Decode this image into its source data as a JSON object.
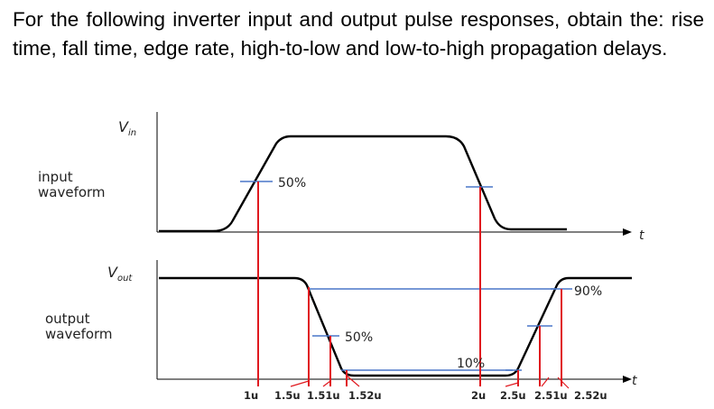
{
  "question": {
    "text": "For the following inverter input and output pulse responses, obtain the: rise time, fall time, edge rate, high-to-low and low-to-high propagation delays."
  },
  "diagram": {
    "input_axis_symbol": "V",
    "input_axis_subscript": "in",
    "output_axis_symbol": "V",
    "output_axis_subscript": "out",
    "input_label_line1": "input",
    "input_label_line2": "waveform",
    "output_label_line1": "output",
    "output_label_line2": "waveform",
    "time_symbol": "t",
    "input_mid_label": "50%",
    "output_mid_label": "50%",
    "high_threshold_label": "90%",
    "low_threshold_label": "10%",
    "time_labels": [
      "1u",
      "1.5u",
      "1.51u",
      "1.52u",
      "2u",
      "2.5u",
      "2.51u",
      "2.52u"
    ],
    "colors": {
      "waveform": "#000000",
      "marker_red": "#e0191f",
      "threshold_blue": "#4a76c8"
    }
  }
}
